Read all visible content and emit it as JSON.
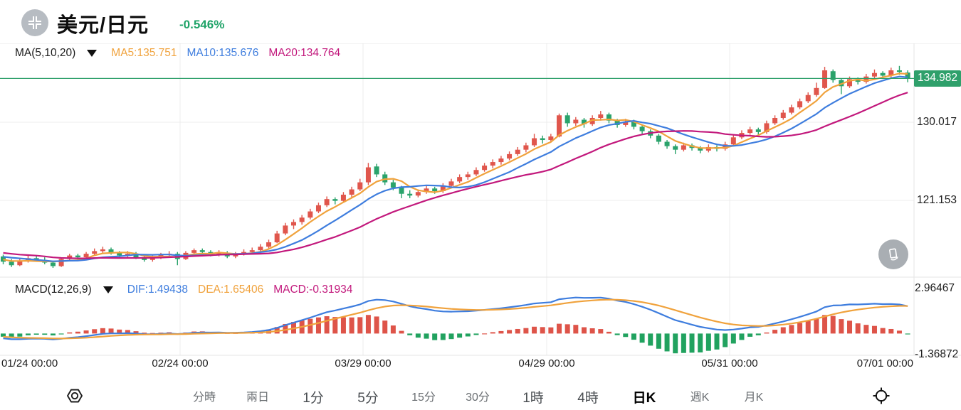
{
  "header": {
    "symbol": "美元/日元",
    "change_percent": "-0.546%",
    "change_color": "#1fa368",
    "symbol_icon": "compress-corners-icon"
  },
  "main_indicator": {
    "label": "MA(5,10,20)",
    "items": [
      {
        "label": "MA5:135.751",
        "color": "#f0a23c"
      },
      {
        "label": "MA10:135.676",
        "color": "#3e7dde"
      },
      {
        "label": "MA20:134.764",
        "color": "#c2187c"
      }
    ]
  },
  "macd_indicator": {
    "label": "MACD(12,26,9)",
    "items": [
      {
        "label": "DIF:1.49438",
        "color": "#3e7dde"
      },
      {
        "label": "DEA:1.65406",
        "color": "#f0a23c"
      },
      {
        "label": "MACD:-0.31934",
        "color": "#c2187c"
      }
    ]
  },
  "price_axis": {
    "current_label": "134.982",
    "current_value": 134.982,
    "tag_color": "#2fa06b",
    "ticks": [
      {
        "label": "130.017",
        "value": 130.017
      },
      {
        "label": "121.153",
        "value": 121.153
      }
    ]
  },
  "macd_axis": {
    "ticks": [
      {
        "label": "2.96467",
        "value": 2.96467
      },
      {
        "label": "-1.36872",
        "value": -1.36872
      }
    ]
  },
  "x_axis": {
    "labels": [
      "01/24 00:00",
      "02/24 00:00",
      "03/29 00:00",
      "04/29 00:00",
      "05/31 00:00",
      "07/01 00:00"
    ]
  },
  "toolbar": {
    "left_icon": "display-settings-icon",
    "right_icon": "crosshair-icon",
    "items": [
      {
        "label": "分時"
      },
      {
        "label": "兩日"
      },
      {
        "label": "1分",
        "strong": true
      },
      {
        "label": "5分",
        "strong": true
      },
      {
        "label": "15分"
      },
      {
        "label": "30分"
      },
      {
        "label": "1時",
        "strong": true
      },
      {
        "label": "4時",
        "strong": true
      },
      {
        "label": "日K",
        "selected": true
      },
      {
        "label": "週K"
      },
      {
        "label": "月K"
      }
    ]
  },
  "rotate_button_icon": "rotate-screen-icon",
  "chart_data": {
    "type": "candlestick",
    "title": "USD/JPY daily candles with MA(5,10,20) overlay and MACD(12,26,9) panel",
    "price_range_labels": [
      134.982,
      130.017,
      121.153
    ],
    "macd_range": [
      2.96467,
      -1.36872
    ],
    "current_price": 134.982,
    "ma_periods": [
      5,
      10,
      20
    ],
    "macd_params": [
      12,
      26,
      9
    ],
    "colors": {
      "up": "#e0564c",
      "down": "#2aa36b",
      "ma5": "#f0a23c",
      "ma10": "#3e7dde",
      "ma20": "#c2187c",
      "dif": "#3e7dde",
      "dea": "#f0a23c",
      "hist_pos": "#de5449",
      "hist_neg": "#21a25f",
      "price_line": "#2fa06b",
      "grid": "#ececec",
      "panel_border": "#e5e5e5"
    },
    "history_closes": [
      115.6,
      115.9,
      116.1,
      115.8,
      115.5,
      115.8,
      116.0,
      115.7,
      115.4,
      115.2,
      115.0,
      114.8,
      115.1,
      115.4,
      115.2,
      114.9,
      114.6,
      114.3,
      114.5,
      114.6
    ],
    "candles": [
      [
        114.8,
        115.0,
        113.9,
        114.2
      ],
      [
        114.2,
        114.5,
        113.6,
        113.8
      ],
      [
        113.8,
        114.5,
        113.7,
        114.3
      ],
      [
        114.3,
        114.9,
        114.1,
        114.6
      ],
      [
        114.6,
        114.9,
        114.2,
        114.4
      ],
      [
        114.4,
        114.7,
        113.9,
        114.1
      ],
      [
        114.1,
        114.3,
        113.5,
        113.7
      ],
      [
        113.7,
        114.7,
        113.6,
        114.5
      ],
      [
        114.5,
        115.1,
        114.3,
        114.9
      ],
      [
        114.9,
        115.1,
        114.4,
        114.7
      ],
      [
        114.7,
        115.3,
        114.5,
        115.1
      ],
      [
        115.1,
        115.7,
        114.9,
        115.4
      ],
      [
        115.4,
        115.9,
        115.2,
        115.6
      ],
      [
        115.6,
        115.8,
        115.0,
        115.2
      ],
      [
        115.2,
        115.4,
        114.7,
        114.9
      ],
      [
        114.9,
        115.4,
        114.7,
        115.1
      ],
      [
        115.1,
        115.3,
        114.5,
        114.7
      ],
      [
        114.7,
        114.9,
        114.2,
        114.4
      ],
      [
        114.4,
        114.9,
        114.2,
        114.7
      ],
      [
        114.7,
        115.2,
        114.5,
        115.0
      ],
      [
        115.0,
        115.4,
        114.8,
        115.1
      ],
      [
        115.1,
        115.3,
        113.8,
        114.5
      ],
      [
        114.5,
        115.4,
        114.4,
        115.2
      ],
      [
        115.2,
        115.7,
        115.0,
        115.5
      ],
      [
        115.5,
        115.7,
        115.1,
        115.3
      ],
      [
        115.3,
        115.5,
        114.8,
        115.0
      ],
      [
        115.0,
        115.5,
        114.8,
        115.2
      ],
      [
        115.2,
        115.4,
        114.6,
        114.8
      ],
      [
        114.8,
        115.3,
        114.6,
        115.1
      ],
      [
        115.1,
        115.6,
        114.9,
        115.3
      ],
      [
        115.3,
        115.8,
        115.1,
        115.5
      ],
      [
        115.5,
        116.2,
        115.3,
        115.9
      ],
      [
        115.9,
        116.7,
        115.7,
        116.4
      ],
      [
        116.4,
        117.7,
        116.3,
        117.4
      ],
      [
        117.4,
        118.6,
        117.2,
        118.3
      ],
      [
        118.3,
        119.0,
        117.9,
        118.7
      ],
      [
        118.7,
        119.5,
        118.4,
        119.2
      ],
      [
        119.2,
        120.2,
        119.0,
        119.9
      ],
      [
        119.9,
        120.9,
        119.7,
        120.6
      ],
      [
        120.6,
        121.6,
        120.4,
        121.3
      ],
      [
        121.3,
        121.5,
        120.7,
        121.1
      ],
      [
        121.1,
        122.1,
        120.9,
        121.8
      ],
      [
        121.8,
        122.7,
        121.5,
        122.4
      ],
      [
        122.4,
        123.6,
        122.2,
        123.2
      ],
      [
        123.2,
        125.4,
        122.9,
        124.9
      ],
      [
        125.0,
        125.3,
        123.8,
        124.1
      ],
      [
        124.1,
        124.4,
        122.9,
        123.2
      ],
      [
        123.2,
        123.5,
        122.3,
        122.6
      ],
      [
        122.6,
        122.8,
        121.4,
        121.9
      ],
      [
        121.9,
        122.3,
        121.4,
        121.7
      ],
      [
        121.7,
        122.4,
        121.5,
        122.1
      ],
      [
        122.1,
        122.8,
        121.9,
        122.5
      ],
      [
        122.5,
        122.7,
        121.9,
        122.2
      ],
      [
        122.2,
        123.1,
        122.0,
        122.8
      ],
      [
        122.8,
        123.6,
        122.6,
        123.3
      ],
      [
        123.3,
        124.1,
        123.1,
        123.8
      ],
      [
        123.8,
        124.4,
        123.5,
        124.1
      ],
      [
        124.1,
        124.9,
        123.9,
        124.6
      ],
      [
        124.6,
        125.4,
        124.4,
        125.1
      ],
      [
        125.1,
        125.8,
        124.8,
        125.5
      ],
      [
        125.5,
        126.2,
        125.2,
        125.9
      ],
      [
        125.9,
        126.7,
        125.7,
        126.4
      ],
      [
        126.4,
        127.2,
        126.2,
        126.9
      ],
      [
        126.9,
        127.7,
        126.6,
        127.4
      ],
      [
        127.4,
        128.7,
        127.2,
        128.2
      ],
      [
        128.2,
        128.5,
        127.6,
        128.0
      ],
      [
        128.0,
        128.7,
        127.8,
        128.4
      ],
      [
        128.4,
        131.0,
        128.3,
        130.8
      ],
      [
        130.8,
        131.1,
        129.5,
        129.9
      ],
      [
        129.9,
        130.6,
        129.6,
        130.3
      ],
      [
        130.3,
        130.5,
        129.4,
        129.8
      ],
      [
        129.8,
        130.8,
        129.6,
        130.5
      ],
      [
        130.5,
        131.3,
        130.2,
        130.9
      ],
      [
        130.9,
        131.1,
        129.9,
        130.2
      ],
      [
        130.2,
        130.4,
        129.4,
        129.7
      ],
      [
        129.7,
        130.4,
        129.5,
        130.1
      ],
      [
        130.1,
        130.3,
        129.2,
        129.5
      ],
      [
        129.5,
        129.7,
        128.7,
        129.0
      ],
      [
        129.0,
        129.2,
        128.2,
        128.5
      ],
      [
        128.5,
        128.7,
        127.5,
        127.8
      ],
      [
        127.8,
        128.0,
        127.0,
        127.3
      ],
      [
        127.3,
        127.5,
        126.4,
        126.9
      ],
      [
        126.9,
        127.7,
        126.7,
        127.4
      ],
      [
        127.4,
        127.6,
        126.8,
        127.1
      ],
      [
        127.1,
        127.3,
        126.5,
        126.8
      ],
      [
        126.8,
        127.5,
        126.6,
        127.2
      ],
      [
        127.2,
        127.4,
        126.7,
        127.0
      ],
      [
        127.0,
        127.8,
        126.8,
        127.5
      ],
      [
        127.5,
        128.6,
        127.3,
        128.3
      ],
      [
        128.3,
        129.1,
        128.1,
        128.8
      ],
      [
        128.8,
        129.5,
        128.6,
        129.2
      ],
      [
        129.2,
        129.4,
        128.6,
        128.9
      ],
      [
        128.9,
        130.2,
        128.7,
        129.9
      ],
      [
        129.9,
        130.8,
        129.7,
        130.5
      ],
      [
        130.5,
        131.4,
        130.3,
        131.1
      ],
      [
        131.1,
        132.0,
        130.9,
        131.7
      ],
      [
        131.7,
        132.7,
        131.5,
        132.4
      ],
      [
        132.4,
        133.4,
        132.2,
        133.1
      ],
      [
        133.1,
        134.5,
        132.9,
        133.9
      ],
      [
        133.9,
        136.3,
        133.8,
        135.9
      ],
      [
        135.8,
        136.0,
        134.5,
        134.8
      ],
      [
        134.8,
        135.0,
        133.2,
        134.1
      ],
      [
        134.1,
        135.2,
        133.9,
        134.9
      ],
      [
        134.9,
        135.1,
        134.3,
        134.6
      ],
      [
        134.6,
        135.5,
        134.4,
        135.2
      ],
      [
        135.2,
        136.0,
        135.0,
        135.6
      ],
      [
        135.6,
        135.8,
        135.0,
        135.3
      ],
      [
        135.3,
        136.2,
        135.1,
        135.9
      ],
      [
        135.9,
        136.4,
        135.4,
        135.72
      ],
      [
        135.65,
        135.9,
        134.55,
        134.982
      ]
    ]
  }
}
